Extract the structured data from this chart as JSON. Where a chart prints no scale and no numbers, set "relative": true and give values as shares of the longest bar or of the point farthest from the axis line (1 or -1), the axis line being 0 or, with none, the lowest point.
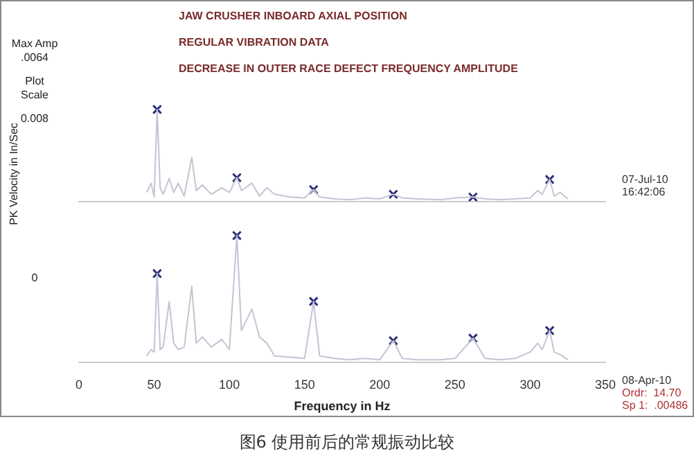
{
  "chart_data": [
    {
      "type": "line",
      "title": "JAW CRUSHER INBOARD AXIAL POSITION",
      "subtitle": "REGULAR VIBRATION DATA",
      "ylabel": "PK Velocity in In/Sec",
      "relative": true,
      "grid": false,
      "tick_labels": false,
      "xlim": [
        0,
        350
      ],
      "xticks": [
        0,
        50,
        100,
        150,
        200,
        250,
        300,
        350
      ],
      "annotations": [
        "DECREASE IN OUTER RACE DEFECT FREQUENCY AMPLITUDE",
        "Max Amp",
        ".0064",
        "Plot",
        "Scale",
        "0.008",
        "07-Jul-10",
        "16:42:06"
      ],
      "series": [
        {
          "type": "line",
          "marker": "none",
          "color": "#c4c4d4",
          "x": [
            45,
            48,
            50,
            52,
            54,
            56,
            60,
            63,
            66,
            70,
            75,
            78,
            82,
            88,
            95,
            100,
            105,
            108,
            115,
            120,
            125,
            130,
            140,
            150,
            156,
            160,
            170,
            180,
            190,
            200,
            209,
            215,
            225,
            240,
            250,
            262,
            270,
            280,
            290,
            300,
            305,
            308,
            313,
            316,
            320,
            325
          ],
          "values": [
            0.1,
            0.2,
            0.05,
            1,
            0.15,
            0.08,
            0.25,
            0.1,
            0.2,
            0.06,
            0.48,
            0.12,
            0.18,
            0.08,
            0.15,
            0.1,
            0.26,
            0.12,
            0.2,
            0.06,
            0.15,
            0.08,
            0.05,
            0.04,
            0.13,
            0.05,
            0.03,
            0.02,
            0.04,
            0.03,
            0.08,
            0.04,
            0.03,
            0.02,
            0.04,
            0.05,
            0.03,
            0.02,
            0.03,
            0.04,
            0.12,
            0.08,
            0.24,
            0.06,
            0.1,
            0.03
          ]
        },
        {
          "type": "scatter",
          "marker": "cross",
          "color": "#2d2d7a",
          "x": [
            52,
            105,
            156,
            209,
            262,
            313
          ],
          "values": [
            1,
            0.26,
            0.13,
            0.08,
            0.05,
            0.24
          ]
        }
      ]
    },
    {
      "type": "line",
      "xlabel": "Frequency in Hz",
      "relative": true,
      "grid": false,
      "tick_labels": "x",
      "xlim": [
        0,
        350
      ],
      "xticks": [
        0,
        50,
        100,
        150,
        200,
        250,
        300,
        350
      ],
      "annotations": [
        "0",
        "08-Apr-10",
        "Ordr:  14.70",
        "Sp 1:  .00486",
        "图6 使用前后的常规振动比较"
      ],
      "series": [
        {
          "type": "line",
          "marker": "none",
          "color": "#c4c4d4",
          "x": [
            45,
            48,
            50,
            52,
            54,
            56,
            60,
            63,
            66,
            70,
            75,
            78,
            82,
            88,
            95,
            100,
            105,
            108,
            115,
            120,
            125,
            130,
            140,
            150,
            156,
            160,
            170,
            180,
            190,
            200,
            209,
            215,
            225,
            240,
            250,
            262,
            270,
            280,
            290,
            300,
            305,
            308,
            313,
            316,
            320,
            325
          ],
          "values": [
            0.05,
            0.1,
            0.08,
            0.7,
            0.1,
            0.12,
            0.48,
            0.15,
            0.1,
            0.12,
            0.6,
            0.15,
            0.2,
            0.12,
            0.18,
            0.1,
            1,
            0.25,
            0.42,
            0.2,
            0.15,
            0.05,
            0.04,
            0.03,
            0.48,
            0.05,
            0.03,
            0.02,
            0.03,
            0.02,
            0.17,
            0.03,
            0.02,
            0.02,
            0.03,
            0.19,
            0.03,
            0.02,
            0.03,
            0.08,
            0.15,
            0.1,
            0.25,
            0.08,
            0.06,
            0.02
          ]
        },
        {
          "type": "scatter",
          "marker": "cross",
          "color": "#2d2d7a",
          "x": [
            52,
            105,
            156,
            209,
            262,
            313
          ],
          "values": [
            0.7,
            1,
            0.48,
            0.17,
            0.19,
            0.25
          ]
        }
      ]
    }
  ]
}
